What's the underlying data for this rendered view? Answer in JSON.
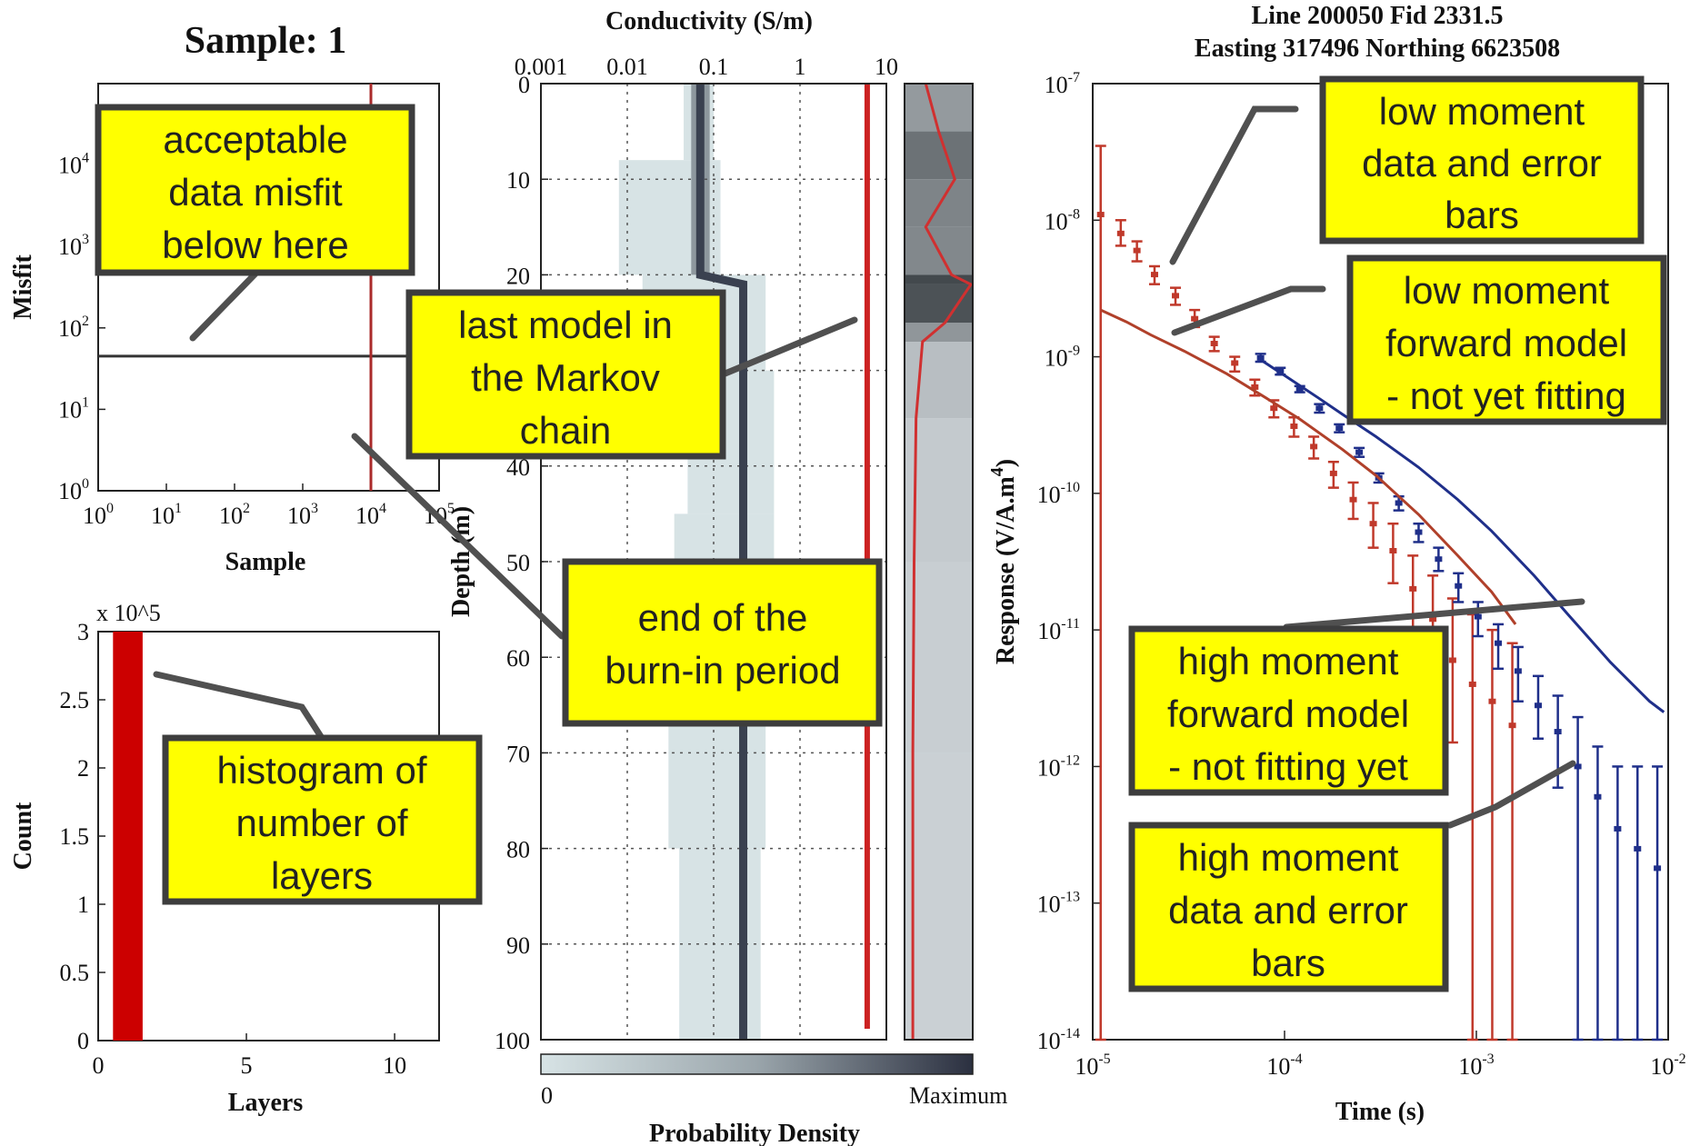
{
  "chart_data": [
    {
      "id": "misfit",
      "type": "line",
      "title": "Sample: 1",
      "xlabel": "Sample",
      "ylabel": "Misfit",
      "xscale": "log",
      "yscale": "log",
      "xlim": [
        1,
        100000
      ],
      "ylim": [
        1,
        100000
      ],
      "x_ticks": [
        "10^0",
        "10^1",
        "10^2",
        "10^3",
        "10^4",
        "10^5"
      ],
      "y_ticks": [
        "10^0",
        "10^1",
        "10^2",
        "10^3",
        "10^4"
      ],
      "acceptable_misfit": 45,
      "burn_in_sample": 10000,
      "misfit_line_color": "#333333",
      "burn_in_color": "#aa2a2a"
    },
    {
      "id": "layers",
      "type": "bar",
      "xlabel": "Layers",
      "ylabel": "Count",
      "y_multiplier": "x 10^5",
      "xlim": [
        0,
        11.5
      ],
      "ylim": [
        0,
        3
      ],
      "x_ticks": [
        "0",
        "5",
        "10"
      ],
      "y_ticks": [
        "0",
        "0.5",
        "1",
        "1.5",
        "2",
        "2.5",
        "3"
      ],
      "bars": [
        {
          "layers": 1,
          "count": 3
        }
      ],
      "bar_color": "#cc0000"
    },
    {
      "id": "conductivity",
      "type": "heatmap",
      "title": "Conductivity (S/m)",
      "ylabel": "Depth (m)",
      "xscale": "log",
      "xlim": [
        0.001,
        10
      ],
      "ylim": [
        100,
        0
      ],
      "x_ticks": [
        "0.001",
        "0.01",
        "0.1",
        "1",
        "10"
      ],
      "y_ticks": [
        "0",
        "10",
        "20",
        "30",
        "40",
        "50",
        "60",
        "70",
        "80",
        "90",
        "100"
      ],
      "colorbar_label": "Probability Density",
      "colorbar_min": "0",
      "colorbar_max": "Maximum",
      "last_model_conductivity": 6.0,
      "mean_profile": [
        [
          0,
          0.07
        ],
        [
          9,
          0.07
        ],
        [
          20,
          0.07
        ],
        [
          21,
          0.22
        ],
        [
          100,
          0.22
        ]
      ],
      "last_model_color": "#cc2222"
    },
    {
      "id": "interface_density",
      "type": "line",
      "description_points": [
        [
          0,
          0.3
        ],
        [
          5,
          0.5
        ],
        [
          10,
          0.75
        ],
        [
          15,
          0.3
        ],
        [
          20,
          0.7
        ],
        [
          21,
          1.0
        ],
        [
          25,
          0.6
        ],
        [
          27,
          0.25
        ],
        [
          35,
          0.15
        ],
        [
          50,
          0.12
        ],
        [
          70,
          0.1
        ],
        [
          100,
          0.1
        ]
      ]
    },
    {
      "id": "response",
      "type": "scatter",
      "title": "Line 200050 Fid 2331.5",
      "subtitle": "Easting 317496 Northing 6623508",
      "xlabel": "Time (s)",
      "ylabel": "Response (V/A.m^4)",
      "xscale": "log",
      "yscale": "log",
      "xlim": [
        1e-05,
        0.01
      ],
      "ylim": [
        1e-14,
        1e-07
      ],
      "x_ticks": [
        "10^-5",
        "10^-4",
        "10^-3",
        "10^-2"
      ],
      "y_ticks": [
        "10^-7",
        "10^-8",
        "10^-9",
        "10^-10",
        "10^-11",
        "10^-12",
        "10^-13",
        "10^-14"
      ],
      "series": [
        {
          "role": "low moment data",
          "color": "#c0392b",
          "x": [
            1.1e-05,
            1.4e-05,
            1.7e-05,
            2.1e-05,
            2.7e-05,
            3.4e-05,
            4.3e-05,
            5.5e-05,
            7e-05,
            8.8e-05,
            0.000112,
            0.000142,
            0.00018,
            0.000228,
            0.00029,
            0.000368,
            0.000467,
            0.000593,
            0.000752,
            0.000955,
            0.00121,
            0.00154
          ],
          "y": [
            1.1e-08,
            8e-09,
            6e-09,
            4e-09,
            2.8e-09,
            1.9e-09,
            1.25e-09,
            9e-10,
            6e-10,
            4.2e-10,
            3.1e-10,
            2.2e-10,
            1.4e-10,
            9e-11,
            6e-11,
            3.8e-11,
            2e-11,
            1.2e-11,
            6e-12,
            4e-12,
            3e-12,
            2e-12
          ],
          "err_lo": [
            1e-15,
            6.5e-09,
            5e-09,
            3.4e-09,
            2.4e-09,
            1.65e-09,
            1.1e-09,
            7.8e-10,
            5.2e-10,
            3.6e-10,
            2.6e-10,
            1.8e-10,
            1.1e-10,
            6.5e-11,
            4e-11,
            2.2e-11,
            9e-12,
            4e-12,
            1.5e-12,
            1e-14,
            1e-14,
            1e-14
          ],
          "err_hi": [
            3.5e-08,
            1e-08,
            7e-09,
            4.6e-09,
            3.2e-09,
            2.2e-09,
            1.4e-09,
            1e-09,
            6.8e-10,
            4.8e-10,
            3.6e-10,
            2.6e-10,
            1.7e-10,
            1.2e-10,
            8.5e-11,
            6e-11,
            3.5e-11,
            2.5e-11,
            1.7e-11,
            1.3e-11,
            1e-11,
            8e-12
          ]
        },
        {
          "role": "high moment data",
          "color": "#1f2f8a",
          "x": [
            7.5e-05,
            9.5e-05,
            0.00012,
            0.000152,
            0.000193,
            0.000245,
            0.00031,
            0.000394,
            0.0005,
            0.000635,
            0.000806,
            0.00102,
            0.0013,
            0.00165,
            0.0021,
            0.00266,
            0.00338,
            0.00429,
            0.00545,
            0.00692,
            0.00878
          ],
          "y": [
            9.8e-10,
            7.8e-10,
            5.8e-10,
            4.2e-10,
            3e-10,
            2e-10,
            1.3e-10,
            8.5e-11,
            5.2e-11,
            3.3e-11,
            2.1e-11,
            1.25e-11,
            8e-12,
            5e-12,
            2.8e-12,
            1.8e-12,
            1e-12,
            6e-13,
            3.5e-13,
            2.5e-13,
            1.8e-13
          ],
          "err_lo": [
            9.2e-10,
            7.4e-10,
            5.5e-10,
            3.9e-10,
            2.8e-10,
            1.85e-10,
            1.2e-10,
            7.5e-11,
            4.4e-11,
            2.7e-11,
            1.6e-11,
            9e-12,
            5.2e-12,
            3e-12,
            1.6e-12,
            7e-13,
            1e-14,
            1e-14,
            1e-14,
            1e-14,
            1e-14
          ],
          "err_hi": [
            1.05e-09,
            8.3e-10,
            6.1e-10,
            4.5e-10,
            3.2e-10,
            2.15e-10,
            1.4e-10,
            9.5e-11,
            6e-11,
            4e-11,
            2.6e-11,
            1.6e-11,
            1.1e-11,
            7.5e-12,
            4.6e-12,
            3.3e-12,
            2.3e-12,
            1.4e-12,
            1e-12,
            1e-12,
            1e-12
          ]
        },
        {
          "role": "low moment forward model",
          "color": "#b0402a",
          "x": [
            1.1e-05,
            1.5e-05,
            2e-05,
            3e-05,
            5e-05,
            8e-05,
            0.00012,
            0.0002,
            0.0003,
            0.0005,
            0.0008,
            0.0012,
            0.0016
          ],
          "y": [
            2.2e-09,
            1.8e-09,
            1.45e-09,
            1.1e-09,
            7.5e-10,
            5e-10,
            3.5e-10,
            2.1e-10,
            1.35e-10,
            7e-11,
            3.5e-11,
            1.9e-11,
            1.1e-11
          ]
        },
        {
          "role": "high moment forward model",
          "color": "#1f2f8a",
          "x": [
            7.5e-05,
            0.0001,
            0.00015,
            0.0002,
            0.0003,
            0.0005,
            0.0008,
            0.0012,
            0.002,
            0.003,
            0.005,
            0.008,
            0.0095
          ],
          "y": [
            9.5e-10,
            7.3e-10,
            5e-10,
            3.8e-10,
            2.6e-10,
            1.55e-10,
            9e-11,
            5.3e-11,
            2.5e-11,
            1.3e-11,
            5.8e-12,
            3e-12,
            2.5e-12
          ]
        }
      ]
    }
  ],
  "annotations": {
    "misfit": [
      "acceptable",
      "data misfit",
      "below here"
    ],
    "markov": [
      "last model in",
      "the Markov",
      "chain"
    ],
    "burnin": [
      "end of the",
      "burn-in period"
    ],
    "histogram": [
      "histogram of",
      "number of",
      "layers"
    ],
    "low_data": [
      "low moment",
      "data and error",
      "bars"
    ],
    "low_model": [
      "low moment",
      "forward model",
      "- not yet fitting"
    ],
    "high_model": [
      "high moment",
      "forward model",
      "- not fitting yet"
    ],
    "high_data": [
      "high moment",
      "data and error",
      "bars"
    ]
  },
  "colors": {
    "callout_fill": "#ffff00",
    "callout_border": "#3d3d3d",
    "heat_low": "#d7e3e5",
    "heat_high": "#2b3040"
  }
}
